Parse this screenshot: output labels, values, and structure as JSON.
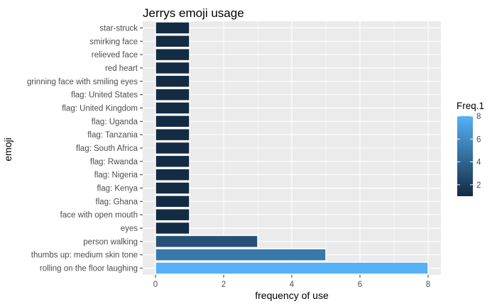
{
  "chart_data": {
    "type": "bar",
    "orientation": "horizontal",
    "title": "Jerrys emoji usage",
    "xlabel": "frequency of use",
    "ylabel": "emoji",
    "xlim": [
      0,
      8.4
    ],
    "x_ticks": [
      0,
      2,
      4,
      6,
      8
    ],
    "grid": true,
    "legend": {
      "title": "Freq.1",
      "placement": "right",
      "type": "colorbar",
      "ticks": [
        2,
        4,
        6,
        8
      ],
      "range": [
        1,
        8
      ],
      "color_low": "#132B43",
      "color_high": "#56B1F7"
    },
    "categories": [
      "star-struck",
      "smirking face",
      "relieved face",
      "red heart",
      "grinning face with smiling eyes",
      "flag: United States",
      "flag: United Kingdom",
      "flag: Uganda",
      "flag: Tanzania",
      "flag: South Africa",
      "flag: Rwanda",
      "flag: Nigeria",
      "flag: Kenya",
      "flag: Ghana",
      "face with open mouth",
      "eyes",
      "person walking",
      "thumbs up: medium skin tone",
      "rolling on the floor laughing"
    ],
    "values": [
      1,
      1,
      1,
      1,
      1,
      1,
      1,
      1,
      1,
      1,
      1,
      1,
      1,
      1,
      1,
      1,
      3,
      5,
      8
    ]
  },
  "colors": {
    "panel_background": "#EBEBEB",
    "grid_major": "#FFFFFF",
    "bar_outline": "#FFFFFF"
  }
}
